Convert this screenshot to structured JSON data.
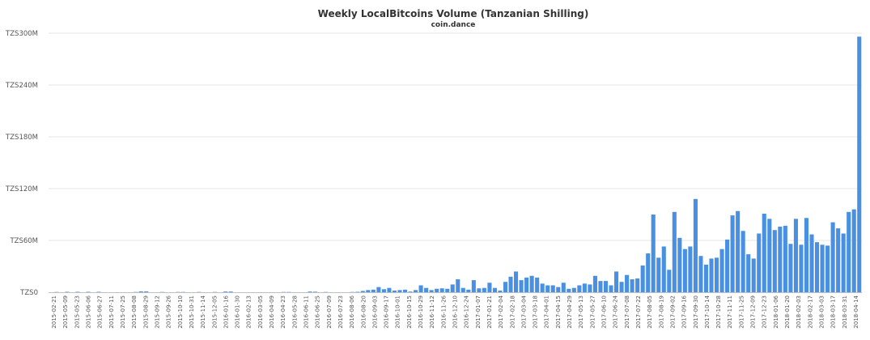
{
  "chart_data": {
    "type": "bar",
    "title": "Weekly LocalBitcoins Volume (Tanzanian Shilling)",
    "subtitle": "coin.dance",
    "xlabel": "",
    "ylabel": "",
    "ylim": [
      0,
      300000000
    ],
    "grid": true,
    "legend": "none",
    "color": "#4a90e2",
    "y_ticks": [
      {
        "value": 0,
        "label": "TZS0"
      },
      {
        "value": 60000000,
        "label": "TZS60M"
      },
      {
        "value": 120000000,
        "label": "TZS120M"
      },
      {
        "value": 180000000,
        "label": "TZS180M"
      },
      {
        "value": 240000000,
        "label": "TZS240M"
      },
      {
        "value": 300000000,
        "label": "TZS300M"
      }
    ],
    "x_tick_labels": [
      "2015-02-21",
      "2015-05-09",
      "2015-05-23",
      "2015-06-06",
      "2015-06-27",
      "2015-07-11",
      "2015-07-25",
      "2015-08-08",
      "2015-08-29",
      "2015-09-12",
      "2015-09-26",
      "2015-10-10",
      "2015-10-31",
      "2015-11-14",
      "2015-12-05",
      "2016-01-16",
      "2016-01-30",
      "2016-02-13",
      "2016-03-05",
      "2016-04-09",
      "2016-04-23",
      "2016-05-28",
      "2016-06-11",
      "2016-06-25",
      "2016-07-09",
      "2016-07-23",
      "2016-08-06",
      "2016-08-20",
      "2016-09-03",
      "2016-09-17",
      "2016-10-01",
      "2016-10-15",
      "2016-10-29",
      "2016-11-12",
      "2016-11-26",
      "2016-12-10",
      "2016-12-24",
      "2017-01-07",
      "2017-01-21",
      "2017-02-04",
      "2017-02-18",
      "2017-03-04",
      "2017-03-18",
      "2017-04-01",
      "2017-04-15",
      "2017-04-29",
      "2017-05-13",
      "2017-05-27",
      "2017-06-10",
      "2017-06-24",
      "2017-07-08",
      "2017-07-22",
      "2017-08-05",
      "2017-08-19",
      "2017-09-02",
      "2017-09-16",
      "2017-09-30",
      "2017-10-14",
      "2017-10-28",
      "2017-11-11",
      "2017-11-25",
      "2017-12-09",
      "2017-12-23",
      "2018-01-06",
      "2018-01-20",
      "2018-02-03",
      "2018-02-17",
      "2018-03-03",
      "2018-03-17",
      "2018-03-31",
      "2018-04-14"
    ],
    "values": [
      0,
      300000,
      0,
      500000,
      0,
      500000,
      0,
      500000,
      0,
      500000,
      0,
      0,
      0,
      0,
      0,
      0,
      300000,
      1000000,
      1000000,
      0,
      0,
      300000,
      0,
      0,
      300000,
      300000,
      0,
      0,
      300000,
      0,
      0,
      300000,
      0,
      800000,
      800000,
      0,
      0,
      0,
      0,
      0,
      0,
      0,
      0,
      0,
      300000,
      300000,
      0,
      0,
      0,
      800000,
      600000,
      0,
      300000,
      0,
      0,
      0,
      0,
      300000,
      500000,
      1500000,
      2500000,
      3000000,
      6000000,
      3500000,
      5000000,
      2000000,
      2500000,
      3000000,
      800000,
      2500000,
      8000000,
      5000000,
      2500000,
      4000000,
      4500000,
      4000000,
      9000000,
      15000000,
      5000000,
      3000000,
      14000000,
      4500000,
      5000000,
      11000000,
      5000000,
      2000000,
      12000000,
      18000000,
      24000000,
      14000000,
      17000000,
      19000000,
      17000000,
      10000000,
      8000000,
      8000000,
      6000000,
      11000000,
      4000000,
      5000000,
      8000000,
      10000000,
      9000000,
      19000000,
      13000000,
      13000000,
      8000000,
      24000000,
      12000000,
      20000000,
      15000000,
      16000000,
      31000000,
      45000000,
      90000000,
      40000000,
      53000000,
      26000000,
      93000000,
      63000000,
      50000000,
      53000000,
      108000000,
      42000000,
      32000000,
      39000000,
      40000000,
      50000000,
      61000000,
      89000000,
      94000000,
      71000000,
      44000000,
      39000000,
      68000000,
      91000000,
      85000000,
      72000000,
      76000000,
      77000000,
      56000000,
      85000000,
      55000000,
      86000000,
      67000000,
      58000000,
      55000000,
      54000000,
      81000000,
      74000000,
      68000000,
      93000000,
      96000000,
      296000000
    ]
  }
}
